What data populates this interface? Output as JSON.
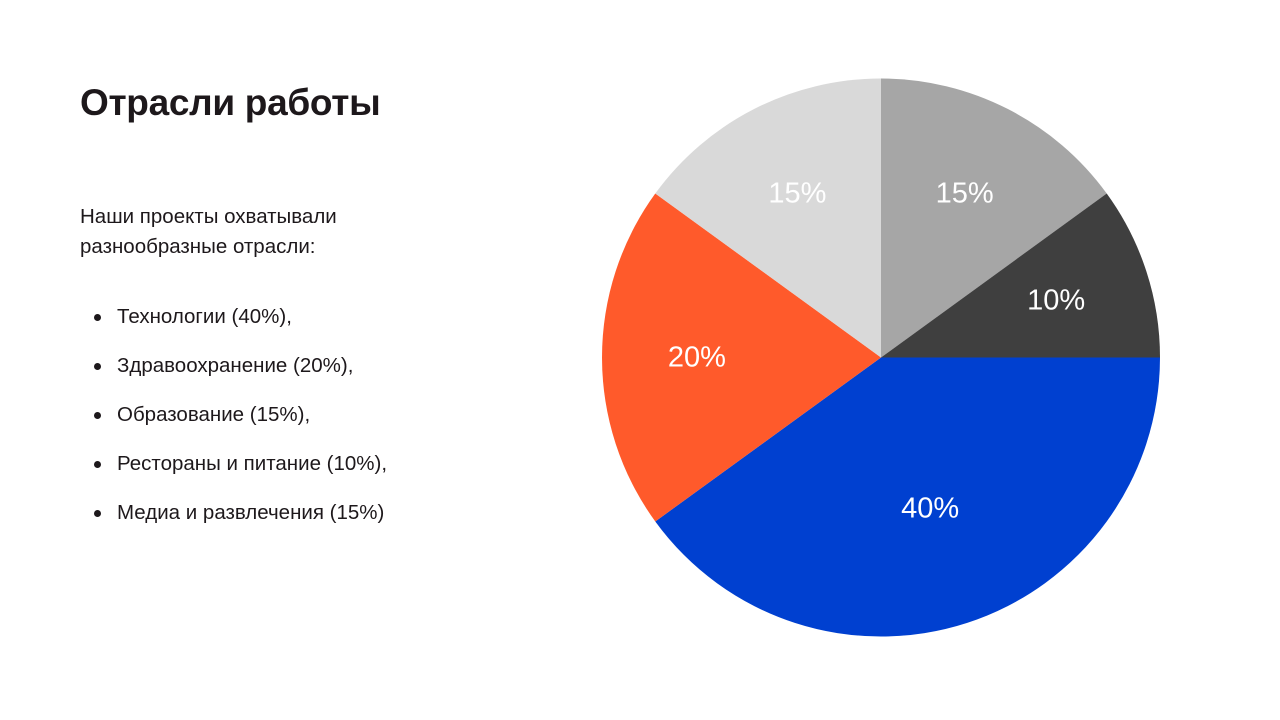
{
  "title": "Отрасли работы",
  "intro": "Наши проекты охватывали разнообразные отрасли:",
  "bullets": [
    "Технологии (40%),",
    "Здравоохранение (20%),",
    "Образование (15%),",
    "Рестораны и питание (10%),",
    "Медиа и развлечения (15%)"
  ],
  "chart_data": {
    "type": "pie",
    "start": "top",
    "direction": "clockwise",
    "legend": "none",
    "slices": [
      {
        "value": 15,
        "label": "15%",
        "color": "#a6a6a6"
      },
      {
        "value": 10,
        "label": "10%",
        "color": "#3f3f3f"
      },
      {
        "value": 40,
        "label": "40%",
        "color": "#0040d0"
      },
      {
        "value": 20,
        "label": "20%",
        "color": "#ff5a2b"
      },
      {
        "value": 15,
        "label": "15%",
        "color": "#d9d9d9"
      }
    ]
  }
}
